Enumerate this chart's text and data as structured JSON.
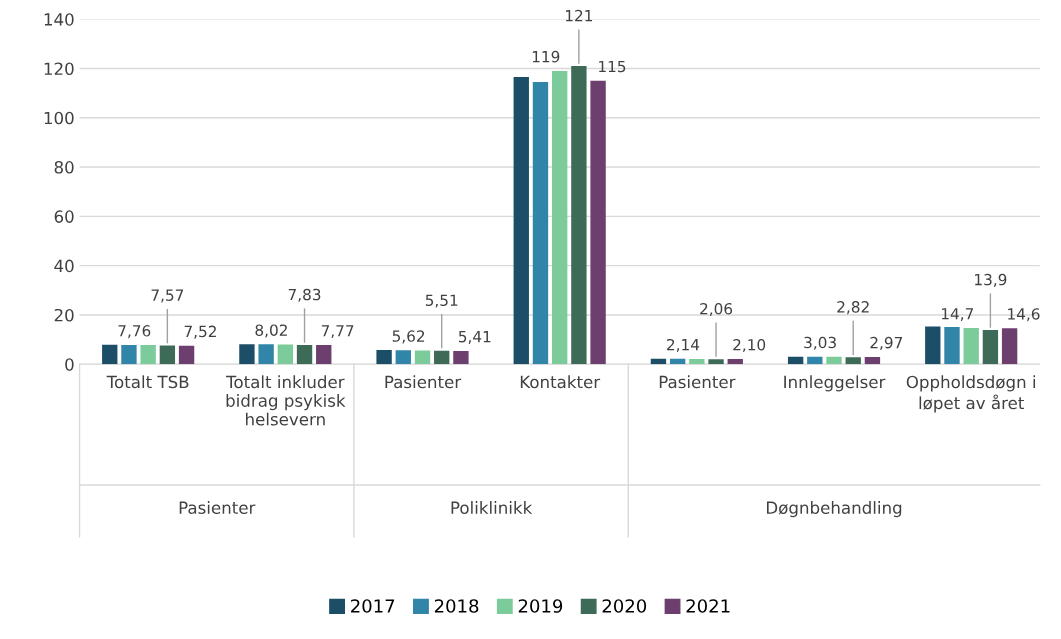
{
  "chart_data": {
    "type": "bar",
    "categories": [
      "Totalt TSB",
      "Totalt inkluder\nbidrag psykisk\nhelsevern",
      "Pasienter",
      "Kontakter",
      "Pasienter",
      "Innleggelser",
      "Oppholdsdøgn i\nløpet av året"
    ],
    "series": [
      {
        "name": "2017",
        "color": "#1d4e67",
        "values": [
          7.9,
          8.1,
          5.8,
          116.5,
          2.2,
          3.0,
          15.3
        ]
      },
      {
        "name": "2018",
        "color": "#3185a8",
        "values": [
          7.8,
          8.1,
          5.7,
          114.5,
          2.2,
          3.0,
          15.1
        ]
      },
      {
        "name": "2019",
        "color": "#7ccb9b",
        "values": [
          7.76,
          8.02,
          5.62,
          119,
          2.14,
          3.03,
          14.7
        ],
        "value_labels": [
          "7,76",
          "8,02",
          "5,62",
          "119",
          "2,14",
          "3,03",
          "14,7"
        ]
      },
      {
        "name": "2020",
        "color": "#3e6b58",
        "values": [
          7.57,
          7.83,
          5.51,
          121,
          2.06,
          2.82,
          13.9
        ],
        "value_labels": [
          "7,57",
          "7,83",
          "5,51",
          "121",
          "2,06",
          "2,82",
          "13,9"
        ]
      },
      {
        "name": "2021",
        "color": "#6d3f6e",
        "values": [
          7.52,
          7.77,
          5.41,
          115,
          2.1,
          2.97,
          14.6
        ],
        "value_labels": [
          "7,52",
          "7,77",
          "5,41",
          "115",
          "2,10",
          "2,97",
          "14,6"
        ]
      }
    ],
    "annotations": [
      "Pasienter",
      "Poliklinikk",
      "Døgnbehandling"
    ],
    "ylim": [
      0,
      140
    ],
    "yticks": [
      0,
      20,
      40,
      60,
      80,
      100,
      120,
      140
    ],
    "grid": "y",
    "legend": "bottom"
  }
}
